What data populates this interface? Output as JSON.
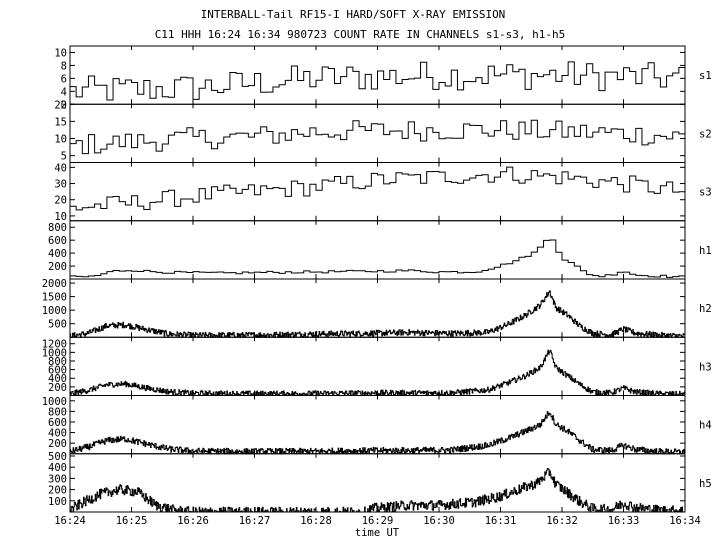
{
  "colors": {
    "background": "#ffffff",
    "ink": "#000000"
  },
  "chart_data": {
    "type": "line",
    "title": "INTERBALL-Tail RF15-I HARD/SOFT X-RAY EMISSION",
    "subtitle": "C11 HHH 16:24 16:34 980723  COUNT RATE IN CHANNELS s1-s3, h1-h5",
    "xlabel": "time UT",
    "x_ticks": [
      "16:24",
      "16:25",
      "16:26",
      "16:27",
      "16:28",
      "16:29",
      "16:30",
      "16:31",
      "16:32",
      "16:33",
      "16:34"
    ],
    "x_range_minutes": [
      0,
      10
    ],
    "grid": false,
    "series": [
      {
        "name": "s1",
        "ylim": [
          2,
          11
        ],
        "yticks": [
          "2",
          "4",
          "6",
          "8",
          "10"
        ],
        "anchors": [
          [
            0,
            4
          ],
          [
            2,
            4.5
          ],
          [
            4,
            6
          ],
          [
            6,
            6.5
          ],
          [
            8,
            6.5
          ],
          [
            10,
            6
          ]
        ],
        "noise": 2.3,
        "step": 0.1
      },
      {
        "name": "s2",
        "ylim": [
          3,
          20
        ],
        "yticks": [
          "5",
          "10",
          "15",
          "20"
        ],
        "anchors": [
          [
            0,
            8
          ],
          [
            1,
            9
          ],
          [
            2,
            10
          ],
          [
            3,
            10.5
          ],
          [
            4,
            12
          ],
          [
            6,
            12.5
          ],
          [
            7,
            12.5
          ],
          [
            8,
            12
          ],
          [
            9,
            11.5
          ],
          [
            10,
            10.5
          ]
        ],
        "noise": 3.2,
        "step": 0.1
      },
      {
        "name": "s3",
        "ylim": [
          7,
          43
        ],
        "yticks": [
          "10",
          "20",
          "30",
          "40"
        ],
        "anchors": [
          [
            0,
            15
          ],
          [
            1,
            18
          ],
          [
            2,
            22
          ],
          [
            3,
            25
          ],
          [
            4,
            28
          ],
          [
            5,
            32
          ],
          [
            6,
            34
          ],
          [
            7,
            36
          ],
          [
            8,
            34
          ],
          [
            9,
            30
          ],
          [
            10,
            25
          ]
        ],
        "noise": 5.5,
        "step": 0.1
      },
      {
        "name": "h1",
        "ylim": [
          0,
          900
        ],
        "yticks": [
          "200",
          "400",
          "600",
          "800"
        ],
        "anchors": [
          [
            0,
            30
          ],
          [
            0.4,
            40
          ],
          [
            0.7,
            120
          ],
          [
            1.0,
            140
          ],
          [
            1.4,
            110
          ],
          [
            1.8,
            100
          ],
          [
            2.5,
            90
          ],
          [
            3,
            100
          ],
          [
            4,
            110
          ],
          [
            5,
            120
          ],
          [
            5.5,
            130
          ],
          [
            6,
            110
          ],
          [
            6.6,
            110
          ],
          [
            7.0,
            200
          ],
          [
            7.3,
            300
          ],
          [
            7.6,
            430
          ],
          [
            7.75,
            600
          ],
          [
            7.8,
            860
          ],
          [
            7.85,
            620
          ],
          [
            8.0,
            330
          ],
          [
            8.2,
            220
          ],
          [
            8.4,
            90
          ],
          [
            8.6,
            40
          ],
          [
            8.8,
            60
          ],
          [
            9.0,
            130
          ],
          [
            9.2,
            60
          ],
          [
            10,
            30
          ]
        ],
        "noise": 18,
        "step": 0.1
      },
      {
        "name": "h2",
        "ylim": [
          0,
          2150
        ],
        "yticks": [
          "500",
          "1000",
          "1500",
          "2000"
        ],
        "anchors": [
          [
            0,
            40
          ],
          [
            0.3,
            150
          ],
          [
            0.6,
            420
          ],
          [
            0.9,
            460
          ],
          [
            1.3,
            260
          ],
          [
            1.6,
            120
          ],
          [
            2.0,
            70
          ],
          [
            3,
            80
          ],
          [
            4,
            120
          ],
          [
            5,
            150
          ],
          [
            5.5,
            180
          ],
          [
            6.2,
            140
          ],
          [
            6.8,
            180
          ],
          [
            7.1,
            450
          ],
          [
            7.4,
            800
          ],
          [
            7.65,
            1200
          ],
          [
            7.8,
            1700
          ],
          [
            7.9,
            1100
          ],
          [
            8.1,
            800
          ],
          [
            8.3,
            400
          ],
          [
            8.5,
            150
          ],
          [
            8.8,
            90
          ],
          [
            9.0,
            300
          ],
          [
            9.2,
            150
          ],
          [
            9.6,
            70
          ],
          [
            10,
            40
          ]
        ],
        "noise": 110,
        "step": 0.01
      },
      {
        "name": "h3",
        "ylim": [
          0,
          1350
        ],
        "yticks": [
          "200",
          "400",
          "600",
          "800",
          "1000",
          "1200"
        ],
        "anchors": [
          [
            0,
            40
          ],
          [
            0.3,
            120
          ],
          [
            0.6,
            250
          ],
          [
            0.9,
            270
          ],
          [
            1.3,
            160
          ],
          [
            1.6,
            90
          ],
          [
            2.0,
            50
          ],
          [
            3,
            40
          ],
          [
            4,
            45
          ],
          [
            5,
            60
          ],
          [
            5.5,
            60
          ],
          [
            6.2,
            60
          ],
          [
            6.8,
            130
          ],
          [
            7.1,
            280
          ],
          [
            7.4,
            450
          ],
          [
            7.65,
            650
          ],
          [
            7.8,
            1050
          ],
          [
            7.9,
            650
          ],
          [
            8.1,
            450
          ],
          [
            8.3,
            250
          ],
          [
            8.5,
            80
          ],
          [
            8.8,
            60
          ],
          [
            9.0,
            170
          ],
          [
            9.2,
            80
          ],
          [
            9.6,
            40
          ],
          [
            10,
            30
          ]
        ],
        "noise": 65,
        "step": 0.01
      },
      {
        "name": "h4",
        "ylim": [
          0,
          1100
        ],
        "yticks": [
          "200",
          "400",
          "600",
          "800",
          "1000"
        ],
        "anchors": [
          [
            0,
            40
          ],
          [
            0.3,
            130
          ],
          [
            0.6,
            250
          ],
          [
            0.9,
            280
          ],
          [
            1.3,
            170
          ],
          [
            1.6,
            90
          ],
          [
            2.0,
            50
          ],
          [
            3,
            40
          ],
          [
            4,
            45
          ],
          [
            5,
            60
          ],
          [
            5.5,
            60
          ],
          [
            6.2,
            70
          ],
          [
            6.8,
            160
          ],
          [
            7.1,
            280
          ],
          [
            7.4,
            420
          ],
          [
            7.65,
            550
          ],
          [
            7.8,
            800
          ],
          [
            7.9,
            560
          ],
          [
            8.1,
            420
          ],
          [
            8.3,
            240
          ],
          [
            8.5,
            80
          ],
          [
            8.8,
            60
          ],
          [
            9.0,
            160
          ],
          [
            9.2,
            80
          ],
          [
            9.6,
            40
          ],
          [
            10,
            30
          ]
        ],
        "noise": 60,
        "step": 0.01
      },
      {
        "name": "h5",
        "ylim": [
          0,
          520
        ],
        "yticks": [
          "100",
          "200",
          "300",
          "400",
          "500"
        ],
        "anchors": [
          [
            0,
            20
          ],
          [
            0.2,
            80
          ],
          [
            0.5,
            160
          ],
          [
            0.8,
            200
          ],
          [
            1.1,
            180
          ],
          [
            1.4,
            60
          ],
          [
            1.7,
            15
          ],
          [
            2.0,
            0
          ],
          [
            4.8,
            0
          ],
          [
            4.9,
            30
          ],
          [
            5.5,
            60
          ],
          [
            6.0,
            60
          ],
          [
            6.6,
            90
          ],
          [
            7.0,
            140
          ],
          [
            7.3,
            200
          ],
          [
            7.6,
            260
          ],
          [
            7.8,
            360
          ],
          [
            7.9,
            250
          ],
          [
            8.1,
            170
          ],
          [
            8.3,
            90
          ],
          [
            8.5,
            30
          ],
          [
            8.8,
            20
          ],
          [
            9.0,
            80
          ],
          [
            9.2,
            40
          ],
          [
            9.6,
            15
          ],
          [
            10,
            10
          ]
        ],
        "noise": 45,
        "step": 0.01
      }
    ]
  }
}
